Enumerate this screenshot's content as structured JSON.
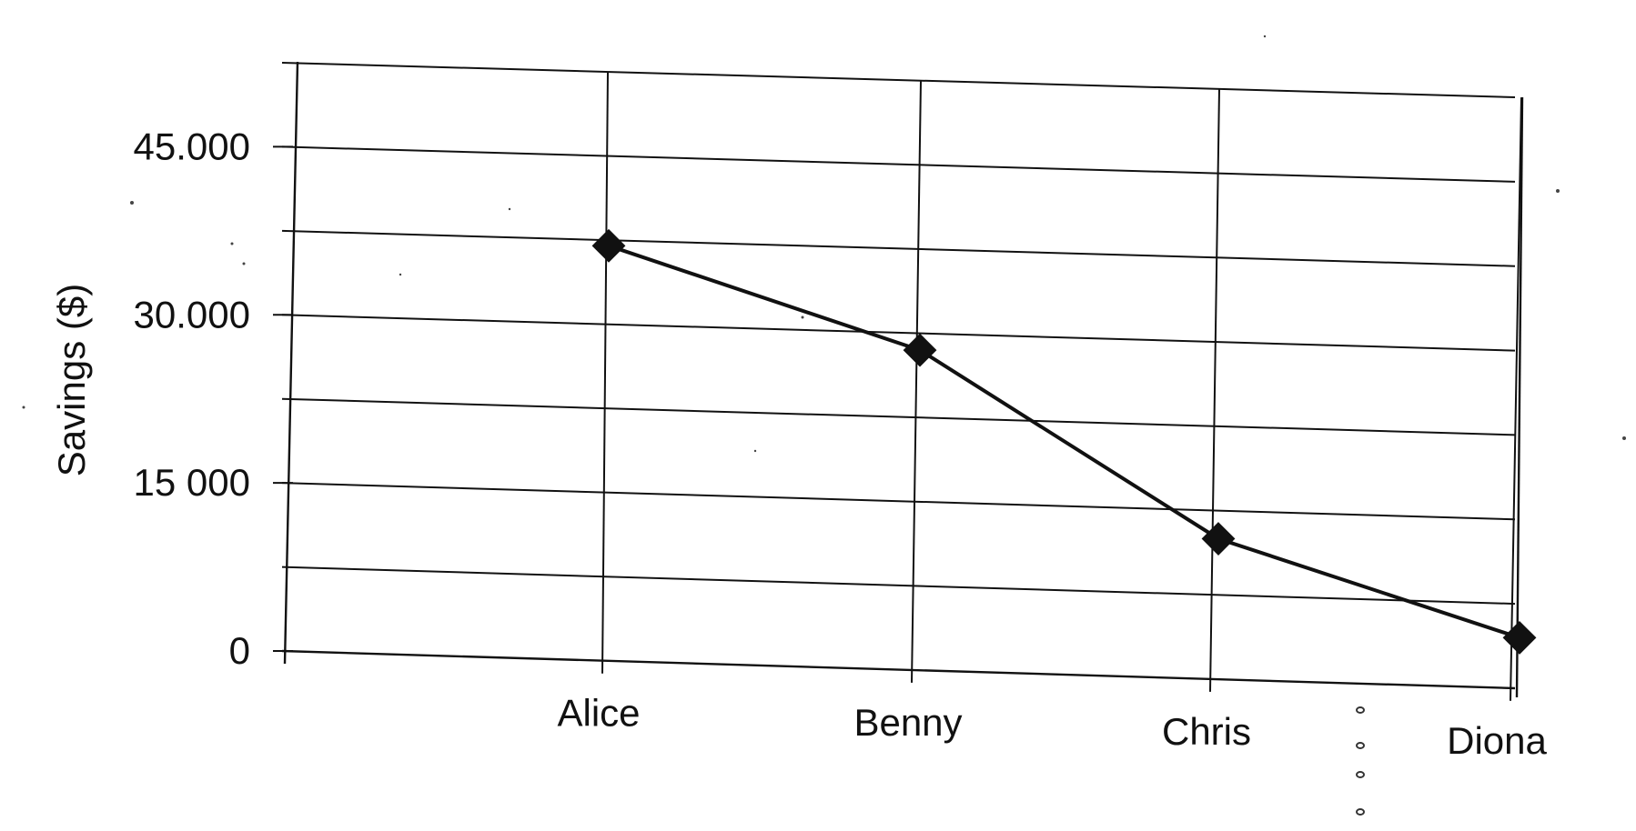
{
  "chart_data": {
    "type": "line",
    "title": "",
    "xlabel": "",
    "ylabel": "Savings  ($)",
    "categories": [
      "Alice",
      "Benny",
      "Chris",
      "Diona"
    ],
    "series": [
      {
        "values": [
          37000,
          28500,
          12500,
          4500
        ]
      }
    ],
    "y_ticks": [
      {
        "value": 0,
        "label": "0"
      },
      {
        "value": 15000,
        "label": "15 000"
      },
      {
        "value": 30000,
        "label": "30.000"
      },
      {
        "value": 45000,
        "label": "45.000"
      }
    ],
    "ylim": [
      0,
      52500
    ],
    "gridlines_y": [
      0,
      7500,
      15000,
      22500,
      30000,
      37500,
      45000,
      52500
    ],
    "grid": true,
    "legend": false,
    "line_color": "#111111",
    "marker": "diamond"
  }
}
